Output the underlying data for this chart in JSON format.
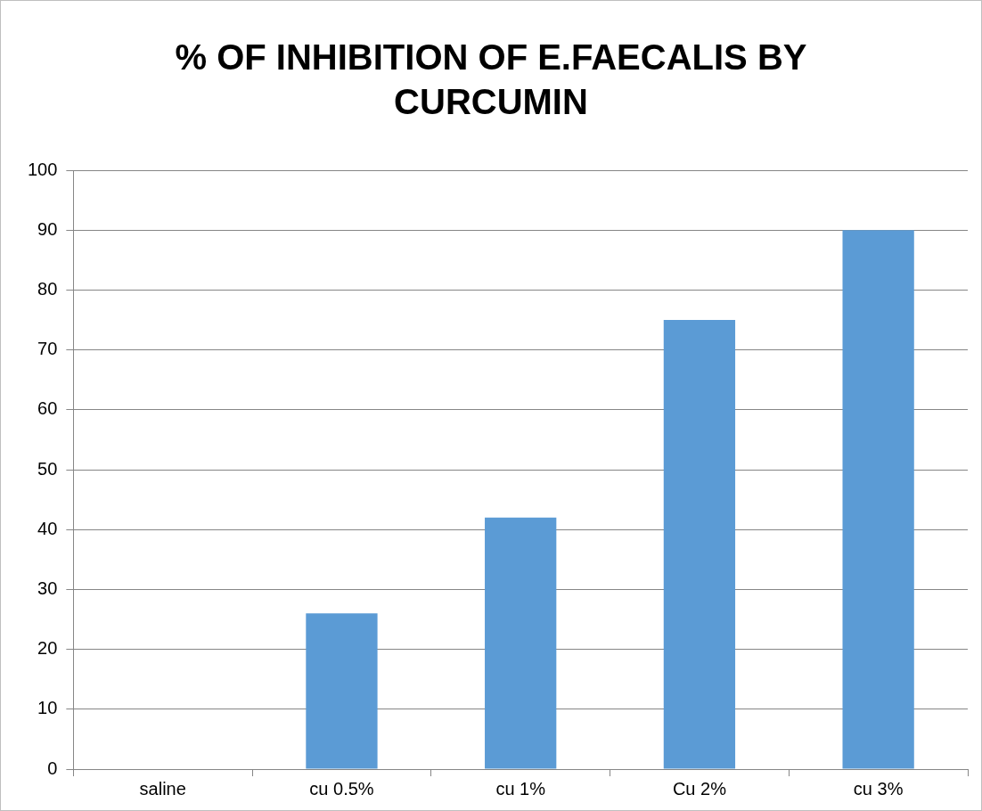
{
  "chart_data": {
    "type": "bar",
    "title": "% OF INHIBITION OF E.FAECALIS BY CURCUMIN",
    "categories": [
      "saline",
      "cu 0.5%",
      "cu 1%",
      "Cu 2%",
      "cu 3%"
    ],
    "values": [
      0,
      26,
      42,
      75,
      90
    ],
    "color": "#5b9bd5",
    "ylim": [
      0,
      100
    ],
    "yticks": [
      0,
      10,
      20,
      30,
      40,
      50,
      60,
      70,
      80,
      90,
      100
    ],
    "grid": "y",
    "legend": false
  }
}
